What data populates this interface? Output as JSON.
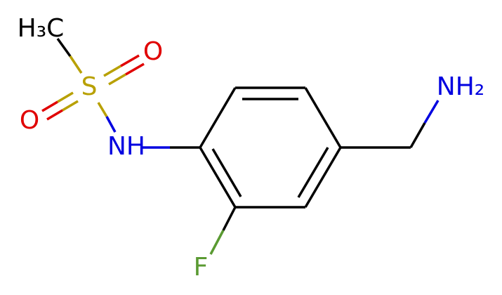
{
  "atoms": [
    {
      "label": "H₃C"
    },
    {
      "label": "S"
    },
    {
      "label": "O"
    },
    {
      "label": "O"
    },
    {
      "label": "NH"
    },
    {
      "label": "F"
    },
    {
      "label": "NH₂"
    }
  ]
}
